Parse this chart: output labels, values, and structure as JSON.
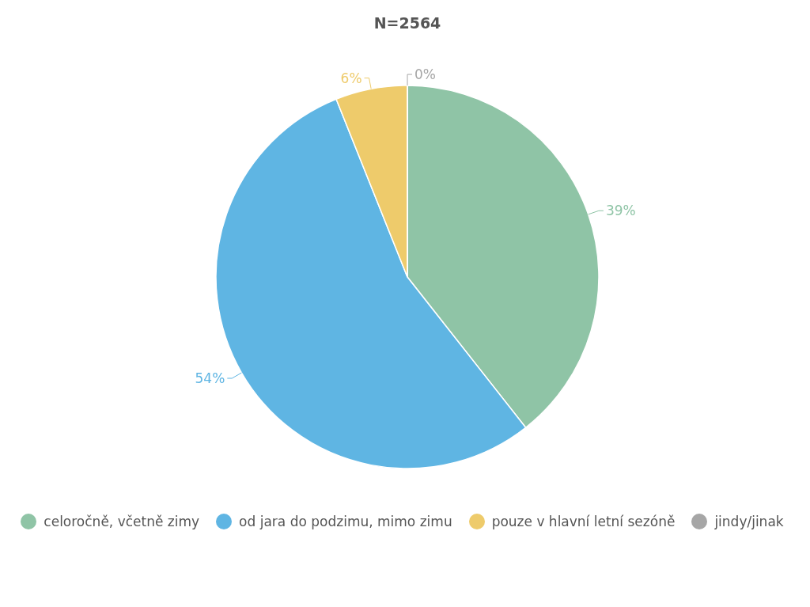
{
  "chart_data": {
    "type": "pie",
    "title": "N=2564",
    "categories": [
      "celoročně, včetně zimy",
      "od jara do podzimu, mimo zimu",
      "pouze v hlavní letní sezóně",
      "jindy/jinak"
    ],
    "values": [
      39,
      54,
      6,
      0
    ],
    "colors": [
      "#8fc4a6",
      "#5fb5e3",
      "#eecb6b",
      "#a6a6a6"
    ],
    "value_labels": [
      "39%",
      "54%",
      "6%",
      "0%"
    ],
    "legend": "bottom"
  }
}
